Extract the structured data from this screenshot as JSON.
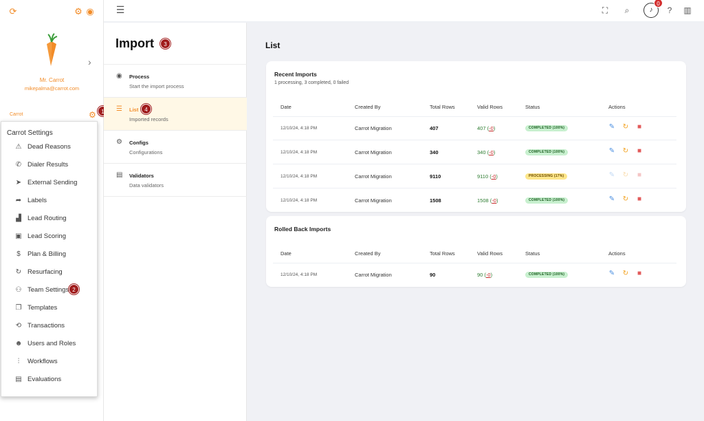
{
  "sidebar": {
    "user_name": "Mr. Carrot",
    "user_email": "mikepalma@carrot.com",
    "org_label": "Carrot"
  },
  "dropdown": {
    "title": "Carrot Settings",
    "items": [
      {
        "label": "Dead Reasons",
        "icon": "warning-icon"
      },
      {
        "label": "Dialer Results",
        "icon": "phone-icon"
      },
      {
        "label": "External Sending",
        "icon": "send-icon"
      },
      {
        "label": "Labels",
        "icon": "label-icon"
      },
      {
        "label": "Lead Routing",
        "icon": "bar-chart-icon"
      },
      {
        "label": "Lead Scoring",
        "icon": "score-icon"
      },
      {
        "label": "Plan & Billing",
        "icon": "dollar-icon"
      },
      {
        "label": "Resurfacing",
        "icon": "refresh-icon"
      },
      {
        "label": "Team Settings",
        "icon": "team-gear-icon"
      },
      {
        "label": "Templates",
        "icon": "templates-icon"
      },
      {
        "label": "Transactions",
        "icon": "sync-icon"
      },
      {
        "label": "Users and Roles",
        "icon": "users-icon"
      },
      {
        "label": "Workflows",
        "icon": "sliders-icon"
      },
      {
        "label": "Evaluations",
        "icon": "clipboard-icon"
      }
    ]
  },
  "badges": {
    "b1": "1",
    "b2": "2",
    "b3": "3",
    "b4": "4",
    "notifications": "0"
  },
  "import_panel": {
    "title": "Import",
    "items": [
      {
        "title": "Process",
        "subtitle": "Start the import process"
      },
      {
        "title": "List",
        "subtitle": "Imported records"
      },
      {
        "title": "Configs",
        "subtitle": "Configurations"
      },
      {
        "title": "Validators",
        "subtitle": "Data validators"
      }
    ]
  },
  "main": {
    "title": "List",
    "recent": {
      "title": "Recent Imports",
      "summary": "1 processing, 3 completed, 0 failed",
      "columns": [
        "Date",
        "Created By",
        "Total Rows",
        "Valid Rows",
        "Status",
        "Actions"
      ],
      "rows": [
        {
          "date": "12/10/24, 4:18 PM",
          "created_by": "Carrot Migration",
          "total": "407",
          "valid": "407",
          "invalid": "-0",
          "status": "COMPLETED (100%)",
          "state": "done"
        },
        {
          "date": "12/10/24, 4:18 PM",
          "created_by": "Carrot Migration",
          "total": "340",
          "valid": "340",
          "invalid": "-0",
          "status": "COMPLETED (100%)",
          "state": "done"
        },
        {
          "date": "12/10/24, 4:18 PM",
          "created_by": "Carrot Migration",
          "total": "9110",
          "valid": "9110",
          "invalid": "-0",
          "status": "PROCESSING (17%)",
          "state": "proc"
        },
        {
          "date": "12/10/24, 4:18 PM",
          "created_by": "Carrot Migration",
          "total": "1508",
          "valid": "1508",
          "invalid": "-0",
          "status": "COMPLETED (100%)",
          "state": "done"
        }
      ]
    },
    "rolled_back": {
      "title": "Rolled Back Imports",
      "columns": [
        "Date",
        "Created By",
        "Total Rows",
        "Valid Rows",
        "Status",
        "Actions"
      ],
      "rows": [
        {
          "date": "12/10/24, 4:18 PM",
          "created_by": "Carrot Migration",
          "total": "90",
          "valid": "90",
          "invalid": "-0",
          "status": "COMPLETED (100%)",
          "state": "done"
        }
      ]
    }
  },
  "colors": {
    "accent": "#f28c28",
    "badge": "#a01c1c",
    "success": "#2e7d32"
  }
}
